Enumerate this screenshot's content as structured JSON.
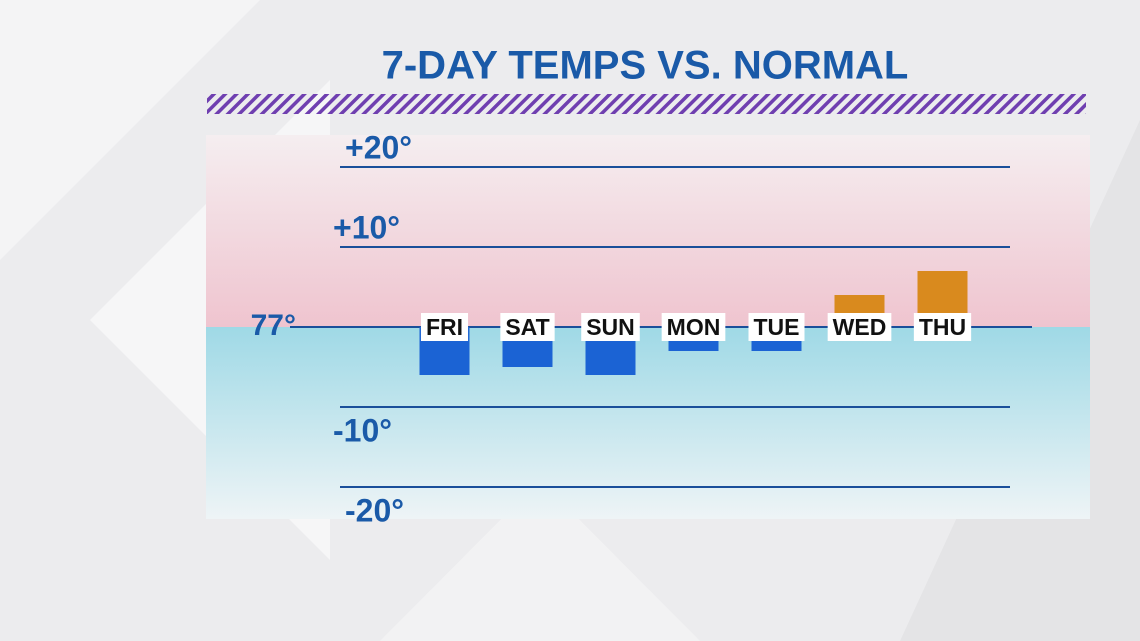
{
  "chart_data": {
    "type": "bar",
    "title": "7-DAY TEMPS VS. NORMAL",
    "categories": [
      "FRI",
      "SAT",
      "SUN",
      "MON",
      "TUE",
      "WED",
      "THU"
    ],
    "values": [
      -6,
      -5,
      -6,
      -3,
      -3,
      4,
      7
    ],
    "colors": {
      "below": "#1b63d4",
      "above": "#d98a1e"
    },
    "ylim": [
      -24,
      24
    ],
    "yticks": [
      {
        "value": -20,
        "label": "-20°"
      },
      {
        "value": -10,
        "label": "-10°"
      },
      {
        "value": 0,
        "label": "77°"
      },
      {
        "value": 10,
        "label": "+10°"
      },
      {
        "value": 20,
        "label": "+20°"
      }
    ],
    "grid": true
  }
}
